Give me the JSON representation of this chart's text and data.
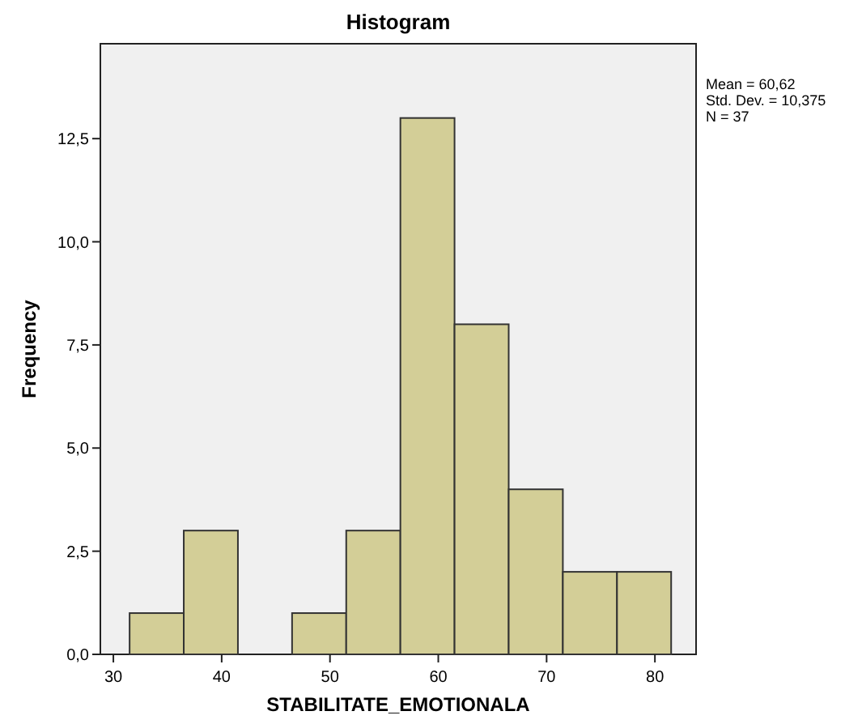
{
  "chart_data": {
    "type": "histogram",
    "title": "Histogram",
    "xlabel": "STABILITATE_EMOTIONALA",
    "ylabel": "Frequency",
    "bins": [
      31.5,
      36.5,
      41.5,
      46.5,
      51.5,
      56.5,
      61.5,
      66.5,
      71.5,
      76.5,
      81.5
    ],
    "values": [
      1,
      3,
      0,
      1,
      3,
      13,
      8,
      4,
      2,
      2
    ],
    "color": "#d3ce97",
    "xlim": [
      28.8,
      83.8
    ],
    "xticks": [
      30,
      40,
      50,
      60,
      70,
      80
    ],
    "ylim": [
      0,
      14.8
    ],
    "yticks": [
      {
        "value": 0,
        "label": "0,0"
      },
      {
        "value": 2.5,
        "label": "2,5"
      },
      {
        "value": 5,
        "label": "5,0"
      },
      {
        "value": 7.5,
        "label": "7,5"
      },
      {
        "value": 10,
        "label": "10,0"
      },
      {
        "value": 12.5,
        "label": "12,5"
      }
    ],
    "annotations": [
      "Mean = 60,62",
      "Std. Dev. = 10,375",
      "N = 37"
    ]
  }
}
